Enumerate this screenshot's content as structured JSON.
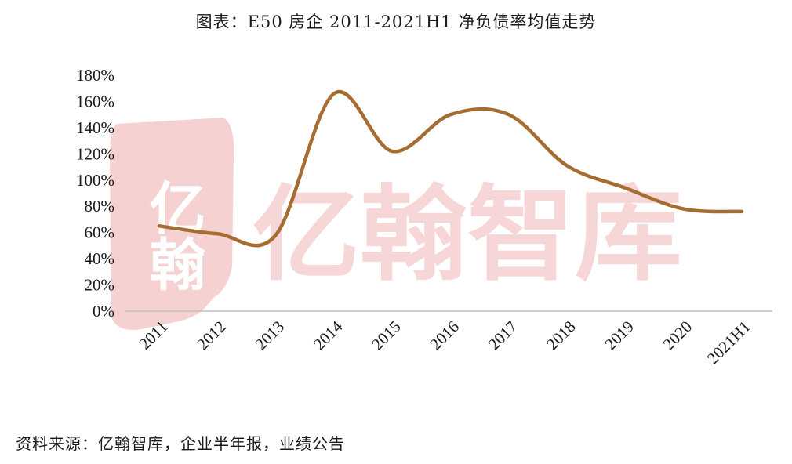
{
  "title": "图表：E50 房企 2011-2021H1 净负债率均值走势",
  "source": "资料来源：亿翰智库，企业半年报，业绩公告",
  "watermark": {
    "text": "亿翰智库",
    "seal_text": "亿翰",
    "color": "#f3c9c9"
  },
  "colors": {
    "line": "#a66d33",
    "axis": "#bfbfbf"
  },
  "chart_data": {
    "type": "line",
    "title": "图表：E50 房企 2011-2021H1 净负债率均值走势",
    "xlabel": "",
    "ylabel": "",
    "categories": [
      "2011",
      "2012",
      "2013",
      "2014",
      "2015",
      "2016",
      "2017",
      "2018",
      "2019",
      "2020",
      "2021H1"
    ],
    "series": [
      {
        "values": [
          65,
          59,
          58,
          166,
          122,
          150,
          150,
          111,
          94,
          78,
          76
        ]
      }
    ],
    "ylim": [
      0,
      180
    ],
    "yticks": [
      0,
      20,
      40,
      60,
      80,
      100,
      120,
      140,
      160,
      180
    ],
    "ytick_labels": [
      "0%",
      "20%",
      "40%",
      "60%",
      "80%",
      "100%",
      "120%",
      "140%",
      "160%",
      "180%"
    ],
    "smooth": true,
    "grid": false,
    "legend": "none"
  }
}
